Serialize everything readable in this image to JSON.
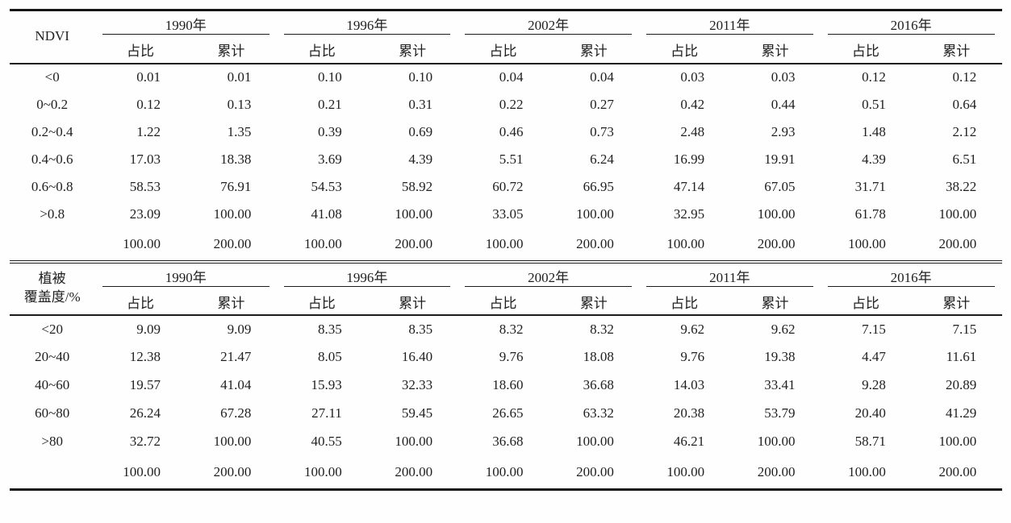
{
  "page": {
    "background_color": "#fefefe",
    "text_color": "#1f1f1f",
    "rule_color": "#1b1b1b"
  },
  "tables": [
    {
      "id": "ndvi",
      "row_header_lines": [
        "NDVI"
      ],
      "years": [
        "1990年",
        "1996年",
        "2002年",
        "2011年",
        "2016年"
      ],
      "subheaders": [
        "占比",
        "累计"
      ],
      "rows": [
        {
          "label": "<0",
          "values": [
            "0.01",
            "0.01",
            "0.10",
            "0.10",
            "0.04",
            "0.04",
            "0.03",
            "0.03",
            "0.12",
            "0.12"
          ]
        },
        {
          "label": "0~0.2",
          "values": [
            "0.12",
            "0.13",
            "0.21",
            "0.31",
            "0.22",
            "0.27",
            "0.42",
            "0.44",
            "0.51",
            "0.64"
          ]
        },
        {
          "label": "0.2~0.4",
          "values": [
            "1.22",
            "1.35",
            "0.39",
            "0.69",
            "0.46",
            "0.73",
            "2.48",
            "2.93",
            "1.48",
            "2.12"
          ]
        },
        {
          "label": "0.4~0.6",
          "values": [
            "17.03",
            "18.38",
            "3.69",
            "4.39",
            "5.51",
            "6.24",
            "16.99",
            "19.91",
            "4.39",
            "6.51"
          ]
        },
        {
          "label": "0.6~0.8",
          "values": [
            "58.53",
            "76.91",
            "54.53",
            "58.92",
            "60.72",
            "66.95",
            "47.14",
            "67.05",
            "31.71",
            "38.22"
          ]
        },
        {
          "label": ">0.8",
          "values": [
            "23.09",
            "100.00",
            "41.08",
            "100.00",
            "33.05",
            "100.00",
            "32.95",
            "100.00",
            "61.78",
            "100.00"
          ]
        },
        {
          "label": "",
          "values": [
            "100.00",
            "200.00",
            "100.00",
            "200.00",
            "100.00",
            "200.00",
            "100.00",
            "200.00",
            "100.00",
            "200.00"
          ]
        }
      ]
    },
    {
      "id": "vegetation-coverage",
      "row_header_lines": [
        "植被",
        "覆盖度/%"
      ],
      "years": [
        "1990年",
        "1996年",
        "2002年",
        "2011年",
        "2016年"
      ],
      "subheaders": [
        "占比",
        "累计"
      ],
      "rows": [
        {
          "label": "<20",
          "values": [
            "9.09",
            "9.09",
            "8.35",
            "8.35",
            "8.32",
            "8.32",
            "9.62",
            "9.62",
            "7.15",
            "7.15"
          ]
        },
        {
          "label": "20~40",
          "values": [
            "12.38",
            "21.47",
            "8.05",
            "16.40",
            "9.76",
            "18.08",
            "9.76",
            "19.38",
            "4.47",
            "11.61"
          ]
        },
        {
          "label": "40~60",
          "values": [
            "19.57",
            "41.04",
            "15.93",
            "32.33",
            "18.60",
            "36.68",
            "14.03",
            "33.41",
            "9.28",
            "20.89"
          ]
        },
        {
          "label": "60~80",
          "values": [
            "26.24",
            "67.28",
            "27.11",
            "59.45",
            "26.65",
            "63.32",
            "20.38",
            "53.79",
            "20.40",
            "41.29"
          ]
        },
        {
          "label": ">80",
          "values": [
            "32.72",
            "100.00",
            "40.55",
            "100.00",
            "36.68",
            "100.00",
            "46.21",
            "100.00",
            "58.71",
            "100.00"
          ]
        },
        {
          "label": "",
          "values": [
            "100.00",
            "200.00",
            "100.00",
            "200.00",
            "100.00",
            "200.00",
            "100.00",
            "200.00",
            "100.00",
            "200.00"
          ]
        }
      ]
    }
  ]
}
